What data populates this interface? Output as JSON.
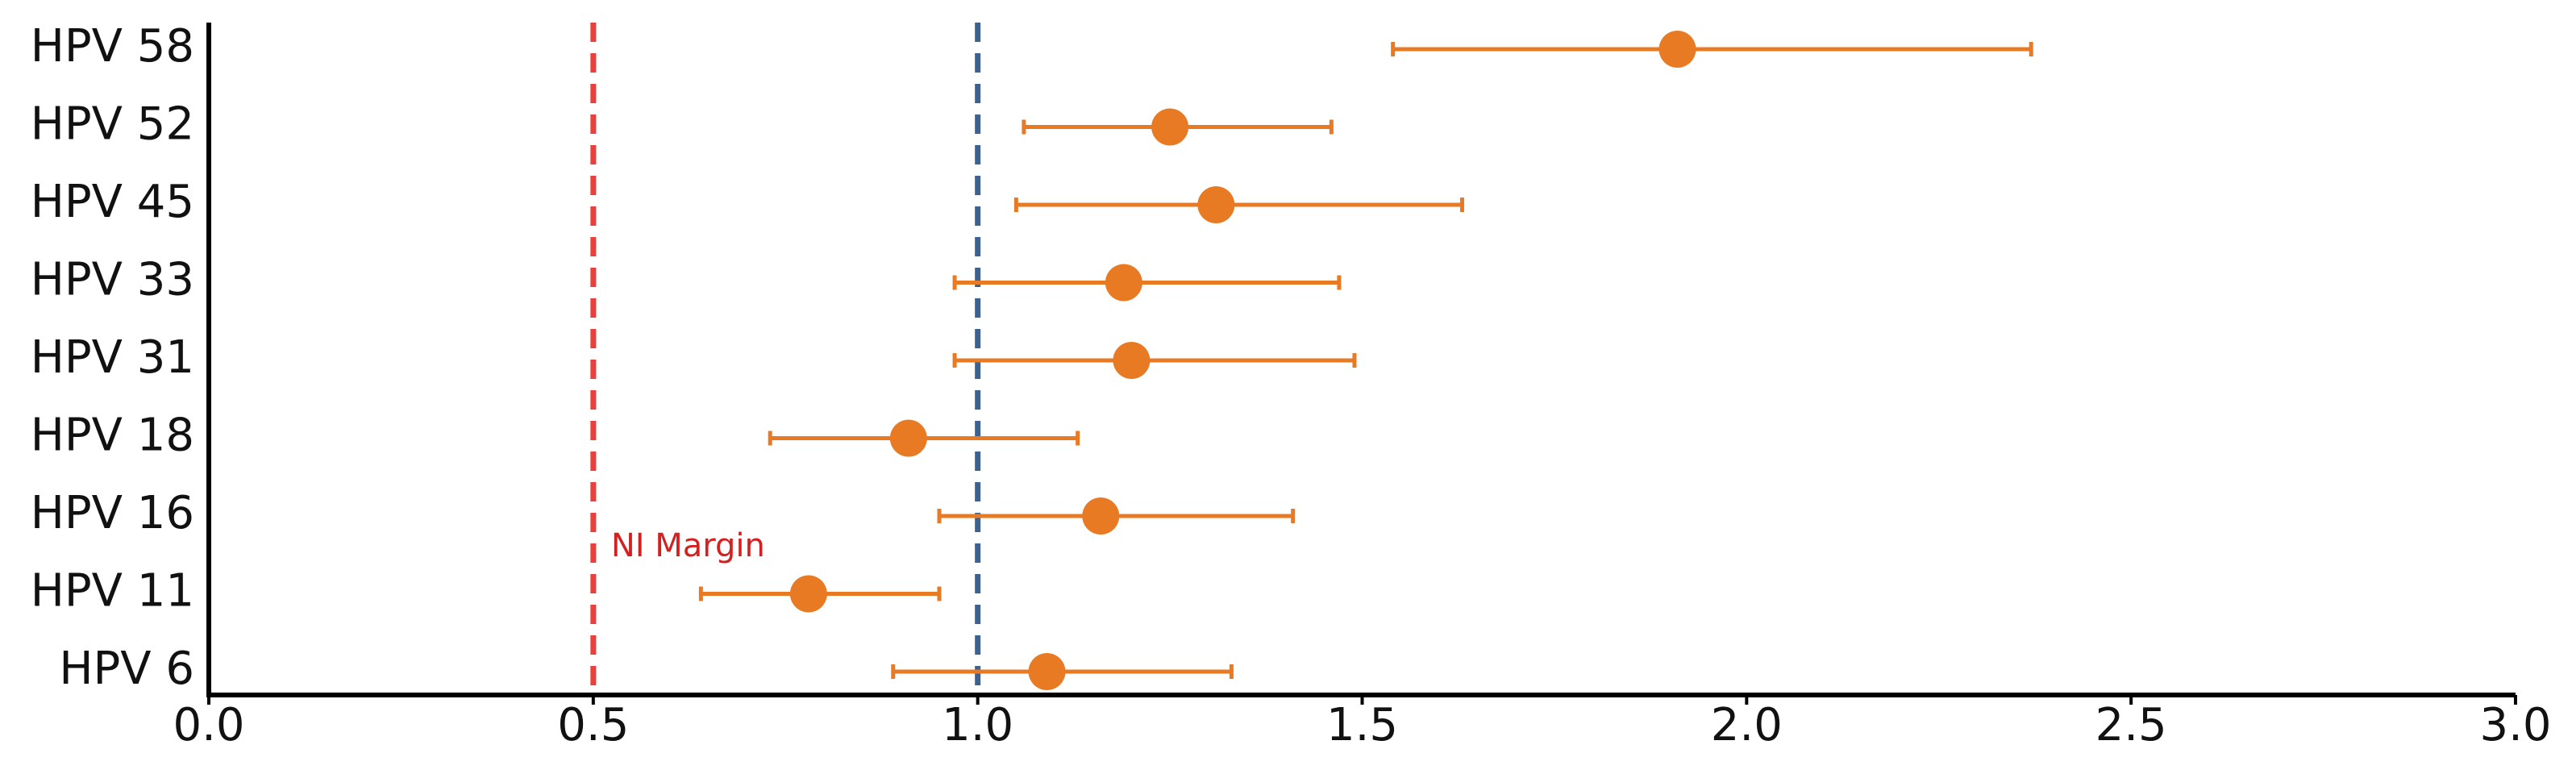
{
  "chart_data": {
    "type": "forest",
    "categories": [
      "HPV 58",
      "HPV 52",
      "HPV 45",
      "HPV 33",
      "HPV 31",
      "HPV 18",
      "HPV 16",
      "HPV 11",
      "HPV 6"
    ],
    "values": [
      1.91,
      1.25,
      1.31,
      1.19,
      1.2,
      0.91,
      1.16,
      0.78,
      1.09
    ],
    "lower": [
      1.54,
      1.06,
      1.05,
      0.97,
      0.97,
      0.73,
      0.95,
      0.64,
      0.89
    ],
    "upper": [
      2.37,
      1.46,
      1.63,
      1.47,
      1.49,
      1.13,
      1.41,
      0.95,
      1.33
    ],
    "color": "#e87a24",
    "xlim": [
      0,
      3
    ],
    "xticks": [
      {
        "value": 0,
        "label": "0.0"
      },
      {
        "value": 0.5,
        "label": "0.5"
      },
      {
        "value": 1,
        "label": "1.0"
      },
      {
        "value": 1.5,
        "label": "1.5"
      },
      {
        "value": 2,
        "label": "2.0"
      },
      {
        "value": 2.5,
        "label": "2.5"
      },
      {
        "value": 3,
        "label": "3.0"
      }
    ],
    "reference_lines": [
      {
        "value": 0.5,
        "color": "#e8403c",
        "label": "NI Margin",
        "label_color": "#d42020"
      },
      {
        "value": 1,
        "color": "#3a6391"
      }
    ]
  }
}
